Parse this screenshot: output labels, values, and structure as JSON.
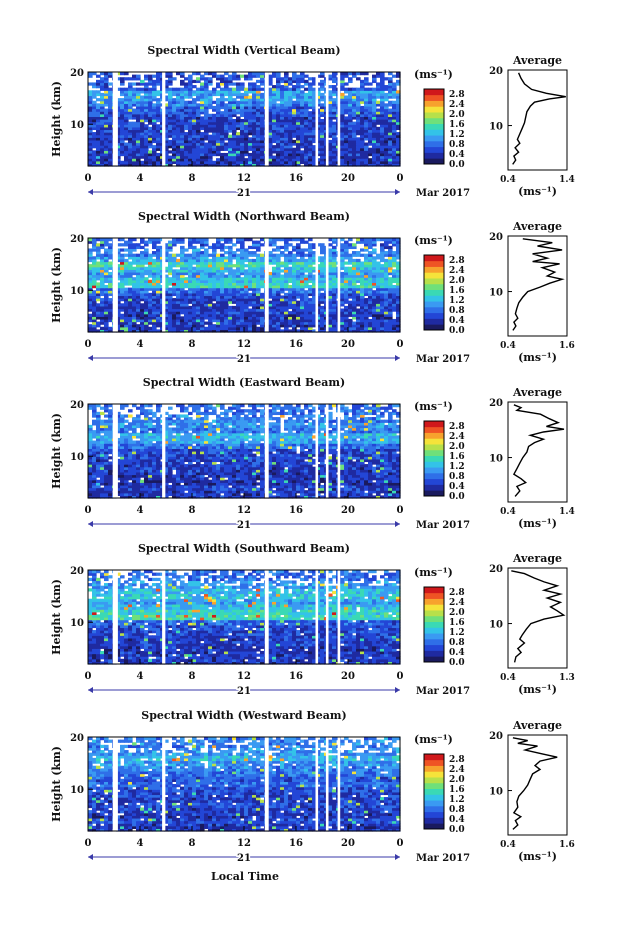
{
  "figure": {
    "local_time_label": "Local Time",
    "colors": {
      "colormap": [
        "#1a1a5e",
        "#1f2aa0",
        "#2346d6",
        "#2f6fe8",
        "#3a9af2",
        "#33c3e8",
        "#3ad9b5",
        "#6fe07a",
        "#b7e04a",
        "#f5e33a",
        "#f7a22d",
        "#ef5424",
        "#d0181b"
      ],
      "gap": "#ffffff",
      "profile_line": "#000000"
    }
  },
  "chart_data": [
    {
      "type": "heatmap",
      "title": "Spectral Width (Vertical Beam)",
      "ylabel": "Height (km)",
      "ylim": [
        2,
        20
      ],
      "y_ticks": [
        "20",
        "10"
      ],
      "xlim": [
        0,
        24
      ],
      "x_ticks": [
        "0",
        "4",
        "8",
        "12",
        "16",
        "20",
        "0"
      ],
      "date_label": "21",
      "date_suffix": "Mar 2017",
      "colorbar": {
        "unit": "(ms⁻¹)",
        "ticks": [
          "2.8",
          "2.4",
          "2.0",
          "1.6",
          "1.2",
          "0.8",
          "0.4",
          "0.0"
        ],
        "range": [
          0.0,
          3.0
        ]
      },
      "data_gaps_hours": [
        [
          1.9,
          2.3
        ],
        [
          5.7,
          5.95
        ],
        [
          13.6,
          13.9
        ],
        [
          17.5,
          17.7
        ],
        [
          18.3,
          18.5
        ],
        [
          19.2,
          19.4
        ]
      ],
      "rows_by_height": [
        {
          "h": 19,
          "v": 0.6
        },
        {
          "h": 17.5,
          "v": 0.7
        },
        {
          "h": 16,
          "v": 1.1
        },
        {
          "h": 15,
          "v": 1.0
        },
        {
          "h": 14,
          "v": 0.9
        },
        {
          "h": 13,
          "v": 0.7
        },
        {
          "h": 12,
          "v": 0.6
        },
        {
          "h": 11,
          "v": 0.5
        },
        {
          "h": 10,
          "v": 0.55
        },
        {
          "h": 9,
          "v": 0.5
        },
        {
          "h": 8,
          "v": 0.5
        },
        {
          "h": 7,
          "v": 0.45
        },
        {
          "h": 6,
          "v": 0.5
        },
        {
          "h": 5,
          "v": 0.45
        },
        {
          "h": 4,
          "v": 0.45
        },
        {
          "h": 3,
          "v": 0.4
        }
      ],
      "average": {
        "title": "Average",
        "xlim": [
          0.4,
          1.4
        ],
        "x_ticks": [
          "0.4",
          "1.4"
        ],
        "xlabel": "(ms⁻¹)",
        "ylim": [
          2,
          20
        ],
        "y_ticks": [
          "20",
          "10"
        ],
        "profile": [
          [
            0.58,
            19.5
          ],
          [
            0.62,
            18.5
          ],
          [
            0.68,
            17.5
          ],
          [
            0.8,
            16.5
          ],
          [
            1.05,
            15.8
          ],
          [
            1.38,
            15.2
          ],
          [
            1.1,
            14.8
          ],
          [
            0.85,
            14.2
          ],
          [
            0.78,
            13.5
          ],
          [
            0.72,
            12.5
          ],
          [
            0.7,
            11.5
          ],
          [
            0.68,
            10.5
          ],
          [
            0.64,
            9.5
          ],
          [
            0.6,
            8.5
          ],
          [
            0.56,
            7.5
          ],
          [
            0.6,
            6.8
          ],
          [
            0.52,
            6
          ],
          [
            0.58,
            5.2
          ],
          [
            0.5,
            4.5
          ],
          [
            0.53,
            3.8
          ],
          [
            0.48,
            3
          ]
        ]
      }
    },
    {
      "type": "heatmap",
      "title": "Spectral Width (Northward Beam)",
      "ylabel": "Height (km)",
      "ylim": [
        2,
        20
      ],
      "y_ticks": [
        "20",
        "10"
      ],
      "xlim": [
        0,
        24
      ],
      "x_ticks": [
        "0",
        "4",
        "8",
        "12",
        "16",
        "20",
        "0"
      ],
      "date_label": "21",
      "date_suffix": "Mar 2017",
      "colorbar": {
        "unit": "(ms⁻¹)",
        "ticks": [
          "2.8",
          "2.4",
          "2.0",
          "1.6",
          "1.2",
          "0.8",
          "0.4",
          "0.0"
        ],
        "range": [
          0.0,
          3.0
        ]
      },
      "data_gaps_hours": [
        [
          1.9,
          2.3
        ],
        [
          5.7,
          5.95
        ],
        [
          13.6,
          13.9
        ],
        [
          17.5,
          17.7
        ],
        [
          18.3,
          18.5
        ],
        [
          19.2,
          19.4
        ]
      ],
      "rows_by_height": [
        {
          "h": 19,
          "v": 0.7
        },
        {
          "h": 17.5,
          "v": 0.9
        },
        {
          "h": 16,
          "v": 1.1
        },
        {
          "h": 15,
          "v": 1.5
        },
        {
          "h": 14,
          "v": 1.2
        },
        {
          "h": 13,
          "v": 1.0
        },
        {
          "h": 12,
          "v": 1.3
        },
        {
          "h": 11,
          "v": 1.4
        },
        {
          "h": 10,
          "v": 0.8
        },
        {
          "h": 9,
          "v": 0.6
        },
        {
          "h": 8,
          "v": 0.55
        },
        {
          "h": 7,
          "v": 0.5
        },
        {
          "h": 6,
          "v": 0.5
        },
        {
          "h": 5,
          "v": 0.45
        },
        {
          "h": 4,
          "v": 0.5
        },
        {
          "h": 3,
          "v": 0.45
        }
      ],
      "average": {
        "title": "Average",
        "xlim": [
          0.4,
          1.6
        ],
        "x_ticks": [
          "0.4",
          "1.6"
        ],
        "xlabel": "(ms⁻¹)",
        "ylim": [
          2,
          20
        ],
        "y_ticks": [
          "20",
          "10"
        ],
        "profile": [
          [
            0.7,
            19.5
          ],
          [
            1.3,
            18.8
          ],
          [
            1.0,
            18.2
          ],
          [
            1.5,
            17.5
          ],
          [
            0.9,
            16.8
          ],
          [
            1.2,
            16
          ],
          [
            0.9,
            15.4
          ],
          [
            1.45,
            15
          ],
          [
            1.1,
            14.3
          ],
          [
            1.35,
            13.5
          ],
          [
            1.2,
            12.8
          ],
          [
            1.5,
            12.2
          ],
          [
            1.25,
            11.5
          ],
          [
            1.05,
            10.8
          ],
          [
            0.8,
            10
          ],
          [
            0.7,
            9
          ],
          [
            0.62,
            8
          ],
          [
            0.58,
            7
          ],
          [
            0.55,
            6
          ],
          [
            0.6,
            5.2
          ],
          [
            0.52,
            4.5
          ],
          [
            0.56,
            3.8
          ],
          [
            0.5,
            3
          ]
        ]
      }
    },
    {
      "type": "heatmap",
      "title": "Spectral Width (Eastward Beam)",
      "ylabel": "Height (km)",
      "ylim": [
        2,
        20
      ],
      "y_ticks": [
        "20",
        "10"
      ],
      "xlim": [
        0,
        24
      ],
      "x_ticks": [
        "0",
        "4",
        "8",
        "12",
        "16",
        "20",
        "0"
      ],
      "date_label": "21",
      "date_suffix": "Mar 2017",
      "colorbar": {
        "unit": "(ms⁻¹)",
        "ticks": [
          "2.8",
          "2.4",
          "2.0",
          "1.6",
          "1.2",
          "0.8",
          "0.4",
          "0.0"
        ],
        "range": [
          0.0,
          3.0
        ]
      },
      "data_gaps_hours": [
        [
          1.9,
          2.3
        ],
        [
          5.7,
          5.95
        ],
        [
          13.6,
          13.9
        ],
        [
          17.5,
          17.7
        ],
        [
          18.3,
          18.5
        ],
        [
          19.2,
          19.4
        ]
      ],
      "rows_by_height": [
        {
          "h": 19,
          "v": 0.8
        },
        {
          "h": 17.5,
          "v": 0.9
        },
        {
          "h": 16,
          "v": 1.0
        },
        {
          "h": 15,
          "v": 0.9
        },
        {
          "h": 14,
          "v": 1.2
        },
        {
          "h": 13,
          "v": 1.1
        },
        {
          "h": 12,
          "v": 0.8
        },
        {
          "h": 11,
          "v": 0.6
        },
        {
          "h": 10,
          "v": 0.55
        },
        {
          "h": 9,
          "v": 0.5
        },
        {
          "h": 8,
          "v": 0.5
        },
        {
          "h": 7,
          "v": 0.45
        },
        {
          "h": 6,
          "v": 0.45
        },
        {
          "h": 5,
          "v": 0.4
        },
        {
          "h": 4,
          "v": 0.5
        },
        {
          "h": 3,
          "v": 0.45
        }
      ],
      "average": {
        "title": "Average",
        "xlim": [
          0.4,
          1.4
        ],
        "x_ticks": [
          "0.4",
          "1.4"
        ],
        "xlabel": "(ms⁻¹)",
        "ylim": [
          2,
          20
        ],
        "y_ticks": [
          "20",
          "10"
        ],
        "profile": [
          [
            0.5,
            19.5
          ],
          [
            0.62,
            19
          ],
          [
            0.55,
            18.5
          ],
          [
            0.95,
            17.8
          ],
          [
            1.1,
            17
          ],
          [
            1.25,
            16.3
          ],
          [
            1.05,
            15.6
          ],
          [
            1.35,
            15.1
          ],
          [
            1.0,
            14.6
          ],
          [
            0.78,
            14
          ],
          [
            1.0,
            13.3
          ],
          [
            0.85,
            12.7
          ],
          [
            0.75,
            12
          ],
          [
            0.72,
            11
          ],
          [
            0.65,
            10
          ],
          [
            0.6,
            9
          ],
          [
            0.55,
            8
          ],
          [
            0.5,
            7
          ],
          [
            0.62,
            6.2
          ],
          [
            0.7,
            5.5
          ],
          [
            0.55,
            4.8
          ],
          [
            0.6,
            4
          ],
          [
            0.52,
            3
          ]
        ]
      }
    },
    {
      "type": "heatmap",
      "title": "Spectral Width (Southward Beam)",
      "ylabel": "Height (km)",
      "ylim": [
        2,
        20
      ],
      "y_ticks": [
        "20",
        "10"
      ],
      "xlim": [
        0,
        24
      ],
      "x_ticks": [
        "0",
        "4",
        "8",
        "12",
        "16",
        "20",
        "0"
      ],
      "date_label": "21",
      "date_suffix": "Mar 2017",
      "colorbar": {
        "unit": "(ms⁻¹)",
        "ticks": [
          "2.8",
          "2.4",
          "2.0",
          "1.6",
          "1.2",
          "0.8",
          "0.4",
          "0.0"
        ],
        "range": [
          0.0,
          3.0
        ]
      },
      "data_gaps_hours": [
        [
          1.9,
          2.3
        ],
        [
          5.7,
          5.95
        ],
        [
          13.6,
          13.9
        ],
        [
          17.5,
          17.7
        ],
        [
          18.3,
          18.5
        ],
        [
          19.2,
          19.4
        ]
      ],
      "rows_by_height": [
        {
          "h": 19,
          "v": 0.8
        },
        {
          "h": 17.5,
          "v": 1.0
        },
        {
          "h": 16,
          "v": 1.2
        },
        {
          "h": 15,
          "v": 1.3
        },
        {
          "h": 14,
          "v": 1.1
        },
        {
          "h": 13,
          "v": 1.2
        },
        {
          "h": 12,
          "v": 1.4
        },
        {
          "h": 11,
          "v": 1.5
        },
        {
          "h": 10,
          "v": 0.7
        },
        {
          "h": 9,
          "v": 0.6
        },
        {
          "h": 8,
          "v": 0.55
        },
        {
          "h": 7,
          "v": 0.5
        },
        {
          "h": 6,
          "v": 0.5
        },
        {
          "h": 5,
          "v": 0.45
        },
        {
          "h": 4,
          "v": 0.45
        },
        {
          "h": 3,
          "v": 0.45
        }
      ],
      "average": {
        "title": "Average",
        "xlim": [
          0.4,
          1.3
        ],
        "x_ticks": [
          "0.4",
          "1.3"
        ],
        "xlabel": "(ms⁻¹)",
        "ylim": [
          2,
          20
        ],
        "y_ticks": [
          "20",
          "10"
        ],
        "profile": [
          [
            0.45,
            19.5
          ],
          [
            0.65,
            19
          ],
          [
            0.8,
            18.2
          ],
          [
            0.95,
            17.5
          ],
          [
            1.15,
            16.8
          ],
          [
            0.95,
            16
          ],
          [
            1.2,
            15.3
          ],
          [
            1.0,
            14.6
          ],
          [
            1.2,
            13.8
          ],
          [
            1.05,
            13
          ],
          [
            1.15,
            12.3
          ],
          [
            1.25,
            11.5
          ],
          [
            0.95,
            10.8
          ],
          [
            0.75,
            10
          ],
          [
            0.68,
            9
          ],
          [
            0.62,
            8
          ],
          [
            0.58,
            7.2
          ],
          [
            0.65,
            6.5
          ],
          [
            0.55,
            5.5
          ],
          [
            0.6,
            4.8
          ],
          [
            0.52,
            4
          ],
          [
            0.5,
            3
          ]
        ]
      }
    },
    {
      "type": "heatmap",
      "title": "Spectral Width (Westward Beam)",
      "ylabel": "Height (km)",
      "ylim": [
        2,
        20
      ],
      "y_ticks": [
        "20",
        "10"
      ],
      "xlim": [
        0,
        24
      ],
      "x_ticks": [
        "0",
        "4",
        "8",
        "12",
        "16",
        "20",
        "0"
      ],
      "date_label": "21",
      "date_suffix": "Mar 2017",
      "colorbar": {
        "unit": "(ms⁻¹)",
        "ticks": [
          "2.8",
          "2.4",
          "2.0",
          "1.6",
          "1.2",
          "0.8",
          "0.4",
          "0.0"
        ],
        "range": [
          0.0,
          3.0
        ]
      },
      "data_gaps_hours": [
        [
          1.9,
          2.3
        ],
        [
          5.7,
          5.95
        ],
        [
          13.6,
          13.9
        ],
        [
          17.5,
          17.7
        ],
        [
          18.3,
          18.5
        ],
        [
          19.2,
          19.4
        ]
      ],
      "rows_by_height": [
        {
          "h": 19,
          "v": 0.9
        },
        {
          "h": 17.5,
          "v": 1.0
        },
        {
          "h": 16,
          "v": 1.2
        },
        {
          "h": 15,
          "v": 1.0
        },
        {
          "h": 14,
          "v": 0.9
        },
        {
          "h": 13,
          "v": 0.8
        },
        {
          "h": 12,
          "v": 0.7
        },
        {
          "h": 11,
          "v": 0.8
        },
        {
          "h": 10,
          "v": 0.6
        },
        {
          "h": 9,
          "v": 0.55
        },
        {
          "h": 8,
          "v": 0.5
        },
        {
          "h": 7,
          "v": 0.6
        },
        {
          "h": 6,
          "v": 0.5
        },
        {
          "h": 5,
          "v": 0.45
        },
        {
          "h": 4,
          "v": 0.6
        },
        {
          "h": 3,
          "v": 0.45
        }
      ],
      "average": {
        "title": "Average",
        "xlim": [
          0.4,
          1.6
        ],
        "x_ticks": [
          "0.4",
          "1.6"
        ],
        "xlabel": "(ms⁻¹)",
        "ylim": [
          2,
          20
        ],
        "y_ticks": [
          "20",
          "10"
        ],
        "profile": [
          [
            0.5,
            19.5
          ],
          [
            0.8,
            19
          ],
          [
            0.6,
            18.5
          ],
          [
            1.0,
            18
          ],
          [
            0.75,
            17.3
          ],
          [
            1.1,
            16.6
          ],
          [
            1.4,
            16
          ],
          [
            1.05,
            15.3
          ],
          [
            0.95,
            14.5
          ],
          [
            1.05,
            13.8
          ],
          [
            0.9,
            13
          ],
          [
            0.85,
            12
          ],
          [
            0.8,
            11
          ],
          [
            0.72,
            10
          ],
          [
            0.62,
            9
          ],
          [
            0.58,
            8
          ],
          [
            0.6,
            7
          ],
          [
            0.52,
            6
          ],
          [
            0.66,
            5.3
          ],
          [
            0.55,
            4.6
          ],
          [
            0.6,
            3.8
          ],
          [
            0.5,
            3
          ]
        ]
      }
    }
  ]
}
